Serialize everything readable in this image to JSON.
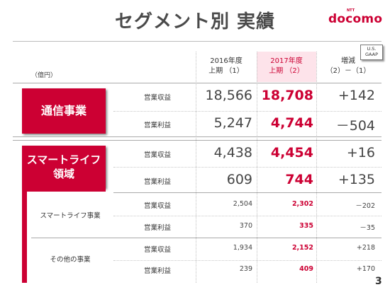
{
  "slide": {
    "title": "セグメント別 実績",
    "page": "3"
  },
  "logo": {
    "ntt": "NTT",
    "text": "docomo"
  },
  "badge": {
    "line1": "U.S.",
    "line2": "GAAP"
  },
  "unit": "（億円）",
  "columns": [
    {
      "line1": "2016年度",
      "line2": "上期 （1）"
    },
    {
      "line1": "2017年度",
      "line2": "上期 （2）"
    },
    {
      "line1": "増減",
      "line2": "（2）－（1）"
    }
  ],
  "segments": {
    "telecom": "通信事業",
    "smartlife_line1": "スマートライフ",
    "smartlife_line2": "領域",
    "smartlife_business": "スマートライフ事業",
    "other_business": "その他の事業"
  },
  "items": {
    "revenue": "営業収益",
    "profit": "営業利益"
  },
  "rows": [
    {
      "v1": "18,566",
      "v2": "18,708",
      "diff": "+142"
    },
    {
      "v1": "5,247",
      "v2": "4,744",
      "diff": "－504"
    },
    {
      "v1": "4,438",
      "v2": "4,454",
      "diff": "+16"
    },
    {
      "v1": "609",
      "v2": "744",
      "diff": "+135"
    },
    {
      "v1": "2,504",
      "v2": "2,302",
      "diff": "－202"
    },
    {
      "v1": "370",
      "v2": "335",
      "diff": "－35"
    },
    {
      "v1": "1,934",
      "v2": "2,152",
      "diff": "+218"
    },
    {
      "v1": "239",
      "v2": "409",
      "diff": "+170"
    }
  ]
}
